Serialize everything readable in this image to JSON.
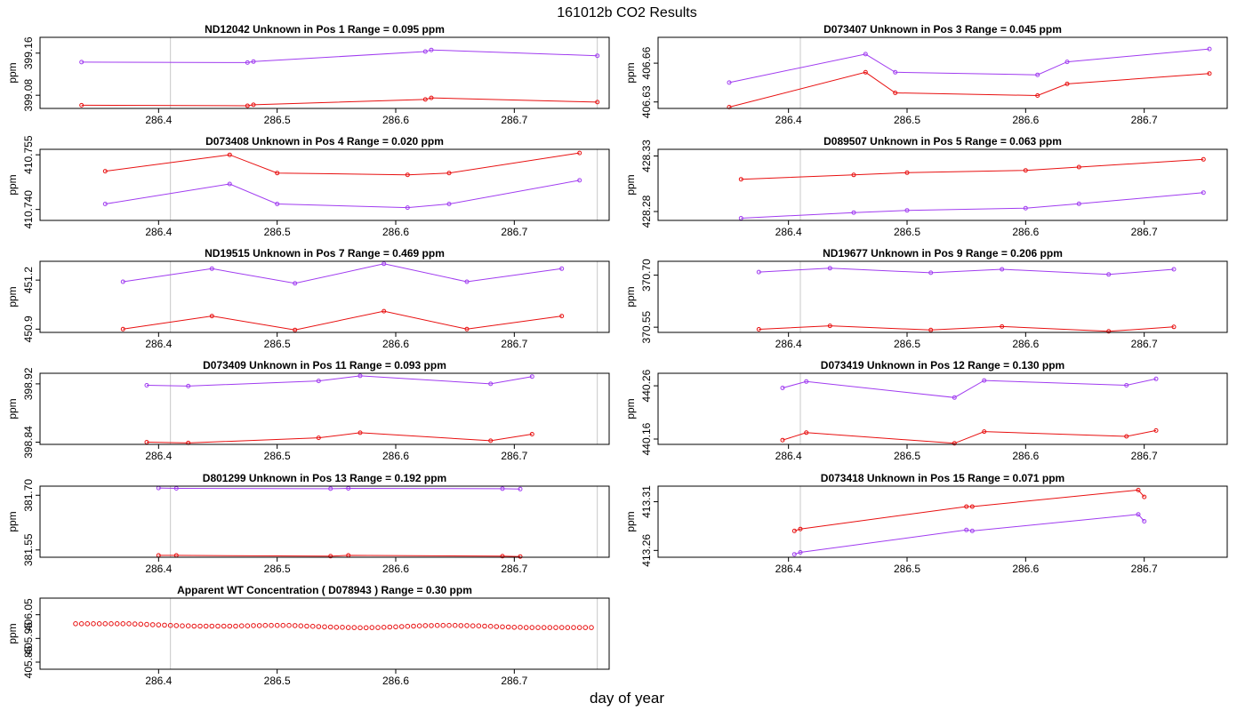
{
  "figure_title": "161012b  CO2 Results",
  "x_axis_label": "day of year",
  "y_axis_label": "ppm",
  "colors": {
    "series_a": "#a03cf0",
    "series_b": "#e81010",
    "frame": "#000000",
    "vline": "#c8c8c8"
  },
  "chart_data": [
    {
      "type": "line",
      "title": "ND12042    Unknown in Pos 1          Range =  0.095 ppm",
      "xlabel": "",
      "ylabel": "ppm",
      "xlim": [
        286.3,
        286.78
      ],
      "ylim": [
        399.055,
        399.19
      ],
      "xticks": [
        "286.4",
        "286.5",
        "286.6",
        "286.7"
      ],
      "yticks": [
        "399.08",
        "399.16"
      ],
      "vlines": [
        286.41,
        286.77
      ],
      "series": [
        {
          "name": "purple",
          "color": "#a03cf0",
          "x": [
            286.335,
            286.475,
            286.48,
            286.625,
            286.63,
            286.77
          ],
          "y": [
            399.143,
            399.142,
            399.144,
            399.163,
            399.166,
            399.155
          ]
        },
        {
          "name": "red",
          "color": "#e81010",
          "x": [
            286.335,
            286.475,
            286.48,
            286.625,
            286.63,
            286.77
          ],
          "y": [
            399.061,
            399.06,
            399.062,
            399.072,
            399.075,
            399.067
          ]
        }
      ]
    },
    {
      "type": "line",
      "title": "D073407    Unknown in Pos 3          Range =  0.045 ppm",
      "xlabel": "",
      "ylabel": "ppm",
      "xlim": [
        286.29,
        286.77
      ],
      "ylim": [
        406.625,
        406.68
      ],
      "xticks": [
        "286.4",
        "286.5",
        "286.6",
        "286.7"
      ],
      "yticks": [
        "406.63",
        "406.66"
      ],
      "vlines": [
        286.41,
        286.77
      ],
      "series": [
        {
          "name": "purple",
          "color": "#a03cf0",
          "x": [
            286.35,
            286.465,
            286.49,
            286.61,
            286.635,
            286.755
          ],
          "y": [
            406.645,
            406.667,
            406.653,
            406.651,
            406.661,
            406.671
          ]
        },
        {
          "name": "red",
          "color": "#e81010",
          "x": [
            286.35,
            286.465,
            286.49,
            286.61,
            286.635,
            286.755
          ],
          "y": [
            406.626,
            406.653,
            406.637,
            406.635,
            406.644,
            406.652
          ]
        }
      ]
    },
    {
      "type": "line",
      "title": "D073408    Unknown in Pos 4          Range =  0.020 ppm",
      "xlabel": "",
      "ylabel": "ppm",
      "xlim": [
        286.3,
        286.78
      ],
      "ylim": [
        410.737,
        410.7565
      ],
      "xticks": [
        "286.4",
        "286.5",
        "286.6",
        "286.7"
      ],
      "yticks": [
        "410.740",
        "410.755"
      ],
      "vlines": [
        286.41,
        286.77
      ],
      "series": [
        {
          "name": "red",
          "color": "#e81010",
          "x": [
            286.355,
            286.46,
            286.5,
            286.61,
            286.645,
            286.755
          ],
          "y": [
            410.7505,
            410.755,
            410.75,
            410.7495,
            410.75,
            410.7555
          ]
        },
        {
          "name": "purple",
          "color": "#a03cf0",
          "x": [
            286.355,
            286.46,
            286.5,
            286.61,
            286.645,
            286.755
          ],
          "y": [
            410.7415,
            410.747,
            410.7415,
            410.7405,
            410.7415,
            410.748
          ]
        }
      ]
    },
    {
      "type": "line",
      "title": "D089507    Unknown in Pos 5          Range =  0.063 ppm",
      "xlabel": "",
      "ylabel": "ppm",
      "xlim": [
        286.29,
        286.77
      ],
      "ylim": [
        428.272,
        428.336
      ],
      "xticks": [
        "286.4",
        "286.5",
        "286.6",
        "286.7"
      ],
      "yticks": [
        "428.28",
        "428.33"
      ],
      "vlines": [
        286.41,
        286.77
      ],
      "series": [
        {
          "name": "red",
          "color": "#e81010",
          "x": [
            286.36,
            286.455,
            286.5,
            286.6,
            286.645,
            286.75
          ],
          "y": [
            428.309,
            428.313,
            428.315,
            428.317,
            428.32,
            428.327
          ]
        },
        {
          "name": "purple",
          "color": "#a03cf0",
          "x": [
            286.36,
            286.455,
            286.5,
            286.6,
            286.645,
            286.75
          ],
          "y": [
            428.274,
            428.279,
            428.281,
            428.283,
            428.287,
            428.297
          ]
        }
      ]
    },
    {
      "type": "line",
      "title": "ND19515    Unknown in Pos 7          Range =  0.469 ppm",
      "xlabel": "",
      "ylabel": "ppm",
      "xlim": [
        286.3,
        286.78
      ],
      "ylim": [
        450.88,
        451.315
      ],
      "xticks": [
        "286.4",
        "286.5",
        "286.6",
        "286.7"
      ],
      "yticks": [
        "450.9",
        "451.2"
      ],
      "vlines": [
        286.41,
        286.77
      ],
      "series": [
        {
          "name": "purple",
          "color": "#a03cf0",
          "x": [
            286.37,
            286.445,
            286.515,
            286.59,
            286.66,
            286.74
          ],
          "y": [
            451.19,
            451.27,
            451.18,
            451.3,
            451.19,
            451.27
          ]
        },
        {
          "name": "red",
          "color": "#e81010",
          "x": [
            286.37,
            286.445,
            286.515,
            286.59,
            286.66,
            286.74
          ],
          "y": [
            450.9,
            450.98,
            450.895,
            451.01,
            450.9,
            450.98
          ]
        }
      ]
    },
    {
      "type": "line",
      "title": "ND19677    Unknown in Pos 9          Range =  0.206 ppm",
      "xlabel": "",
      "ylabel": "ppm",
      "xlim": [
        286.29,
        286.77
      ],
      "ylim": [
        370.535,
        370.74
      ],
      "xticks": [
        "286.4",
        "286.5",
        "286.6",
        "286.7"
      ],
      "yticks": [
        "370.55",
        "370.70"
      ],
      "vlines": [
        286.41,
        286.77
      ],
      "series": [
        {
          "name": "purple",
          "color": "#a03cf0",
          "x": [
            286.375,
            286.435,
            286.52,
            286.58,
            286.67,
            286.725
          ],
          "y": [
            370.709,
            370.72,
            370.707,
            370.717,
            370.702,
            370.717
          ]
        },
        {
          "name": "red",
          "color": "#e81010",
          "x": [
            286.375,
            286.435,
            286.52,
            286.58,
            286.67,
            286.725
          ],
          "y": [
            370.544,
            370.554,
            370.542,
            370.552,
            370.538,
            370.551
          ]
        }
      ]
    },
    {
      "type": "line",
      "title": "D073409    Unknown in Pos 11          Range =  0.093 ppm",
      "xlabel": "",
      "ylabel": "ppm",
      "xlim": [
        286.3,
        286.78
      ],
      "ylim": [
        398.837,
        398.9345
      ],
      "xticks": [
        "286.4",
        "286.5",
        "286.6",
        "286.7"
      ],
      "yticks": [
        "398.84",
        "398.92"
      ],
      "vlines": [
        286.41,
        286.77
      ],
      "series": [
        {
          "name": "purple",
          "color": "#a03cf0",
          "x": [
            286.39,
            286.425,
            286.535,
            286.57,
            286.68,
            286.715
          ],
          "y": [
            398.918,
            398.917,
            398.924,
            398.931,
            398.92,
            398.93
          ]
        },
        {
          "name": "red",
          "color": "#e81010",
          "x": [
            286.39,
            286.425,
            286.535,
            286.57,
            286.68,
            286.715
          ],
          "y": [
            398.84,
            398.839,
            398.846,
            398.853,
            398.842,
            398.851
          ]
        }
      ]
    },
    {
      "type": "line",
      "title": "D073419    Unknown in Pos 12          Range =  0.130 ppm",
      "xlabel": "",
      "ylabel": "ppm",
      "xlim": [
        286.29,
        286.77
      ],
      "ylim": [
        440.15,
        440.2835
      ],
      "xticks": [
        "286.4",
        "286.5",
        "286.6",
        "286.7"
      ],
      "yticks": [
        "440.16",
        "440.26"
      ],
      "vlines": [
        286.41,
        286.77
      ],
      "series": [
        {
          "name": "purple",
          "color": "#a03cf0",
          "x": [
            286.395,
            286.415,
            286.54,
            286.565,
            286.685,
            286.71
          ],
          "y": [
            440.256,
            440.268,
            440.238,
            440.27,
            440.261,
            440.273
          ]
        },
        {
          "name": "red",
          "color": "#e81010",
          "x": [
            286.395,
            286.415,
            286.54,
            286.565,
            286.685,
            286.71
          ],
          "y": [
            440.158,
            440.172,
            440.152,
            440.174,
            440.165,
            440.176
          ]
        }
      ]
    },
    {
      "type": "line",
      "title": "D801299    Unknown in Pos 13          Range =  0.192 ppm",
      "xlabel": "",
      "ylabel": "ppm",
      "xlim": [
        286.3,
        286.78
      ],
      "ylim": [
        381.53,
        381.725
      ],
      "xticks": [
        "286.4",
        "286.5",
        "286.6",
        "286.7"
      ],
      "yticks": [
        "381.55",
        "381.70"
      ],
      "vlines": [
        286.41,
        286.77
      ],
      "series": [
        {
          "name": "purple",
          "color": "#a03cf0",
          "x": [
            286.4,
            286.415,
            286.545,
            286.56,
            286.69,
            286.705
          ],
          "y": [
            381.72,
            381.719,
            381.718,
            381.719,
            381.718,
            381.717
          ]
        },
        {
          "name": "red",
          "color": "#e81010",
          "x": [
            286.4,
            286.415,
            286.545,
            286.56,
            286.69,
            286.705
          ],
          "y": [
            381.535,
            381.535,
            381.533,
            381.535,
            381.533,
            381.532
          ]
        }
      ]
    },
    {
      "type": "line",
      "title": "D073418    Unknown in Pos 15          Range =  0.071 ppm",
      "xlabel": "",
      "ylabel": "ppm",
      "xlim": [
        286.29,
        286.77
      ],
      "ylim": [
        413.253,
        413.326
      ],
      "xticks": [
        "286.4",
        "286.5",
        "286.6",
        "286.7"
      ],
      "yticks": [
        "413.26",
        "413.31"
      ],
      "vlines": [
        286.41,
        286.77
      ],
      "series": [
        {
          "name": "red",
          "color": "#e81010",
          "x": [
            286.405,
            286.41,
            286.55,
            286.555,
            286.695,
            286.7
          ],
          "y": [
            413.28,
            413.282,
            413.305,
            413.305,
            413.322,
            413.315
          ]
        },
        {
          "name": "purple",
          "color": "#a03cf0",
          "x": [
            286.405,
            286.41,
            286.55,
            286.555,
            286.695,
            286.7
          ],
          "y": [
            413.256,
            413.258,
            413.281,
            413.28,
            413.297,
            413.29
          ]
        }
      ]
    },
    {
      "type": "scatter",
      "title": "Apparent WT Concentration ( D078943 )          Range = 0.30 ppm",
      "xlabel": "",
      "ylabel": "ppm",
      "xlim": [
        286.3,
        286.78
      ],
      "ylim": [
        405.82,
        406.12
      ],
      "xticks": [
        "286.4",
        "286.5",
        "286.6",
        "286.7"
      ],
      "yticks": [
        "405.85",
        "405.95",
        "406.05"
      ],
      "vlines": [
        286.41,
        286.77
      ],
      "series": [
        {
          "name": "red",
          "color": "#e81010",
          "x": [
            286.33,
            286.335,
            286.34,
            286.345,
            286.35,
            286.355,
            286.36,
            286.365,
            286.37,
            286.375,
            286.38,
            286.385,
            286.39,
            286.395,
            286.4,
            286.405,
            286.41,
            286.415,
            286.42,
            286.425,
            286.43,
            286.435,
            286.44,
            286.445,
            286.45,
            286.455,
            286.46,
            286.465,
            286.47,
            286.475,
            286.48,
            286.485,
            286.49,
            286.495,
            286.5,
            286.505,
            286.51,
            286.515,
            286.52,
            286.525,
            286.53,
            286.535,
            286.54,
            286.545,
            286.55,
            286.555,
            286.56,
            286.565,
            286.57,
            286.575,
            286.58,
            286.585,
            286.59,
            286.595,
            286.6,
            286.605,
            286.61,
            286.615,
            286.62,
            286.625,
            286.63,
            286.635,
            286.64,
            286.645,
            286.65,
            286.655,
            286.66,
            286.665,
            286.67,
            286.675,
            286.68,
            286.685,
            286.69,
            286.695,
            286.7,
            286.705,
            286.71,
            286.715,
            286.72,
            286.725,
            286.73,
            286.735,
            286.74,
            286.745,
            286.75,
            286.755,
            286.76,
            286.765
          ],
          "y": [
            406.012,
            406.012,
            406.012,
            406.012,
            406.012,
            406.012,
            406.012,
            406.012,
            406.012,
            406.012,
            406.011,
            406.01,
            406.009,
            406.008,
            406.007,
            406.006,
            406.005,
            406.004,
            406.003,
            406.003,
            406.002,
            406.002,
            406.002,
            406.002,
            406.002,
            406.002,
            406.002,
            406.002,
            406.003,
            406.003,
            406.004,
            406.004,
            406.005,
            406.005,
            406.005,
            406.005,
            406.005,
            406.004,
            406.003,
            406.002,
            406.001,
            406.0,
            405.999,
            405.998,
            405.997,
            405.997,
            405.996,
            405.996,
            405.995,
            405.995,
            405.996,
            405.996,
            405.997,
            405.998,
            405.999,
            406.0,
            406.001,
            406.002,
            406.003,
            406.004,
            406.004,
            406.005,
            406.005,
            406.005,
            406.005,
            406.004,
            406.004,
            406.003,
            406.003,
            406.002,
            406.001,
            406.0,
            405.999,
            405.998,
            405.997,
            405.997,
            405.996,
            405.996,
            405.996,
            405.996,
            405.996,
            405.996,
            405.996,
            405.996,
            405.996,
            405.996,
            405.996,
            405.996
          ]
        }
      ]
    }
  ]
}
